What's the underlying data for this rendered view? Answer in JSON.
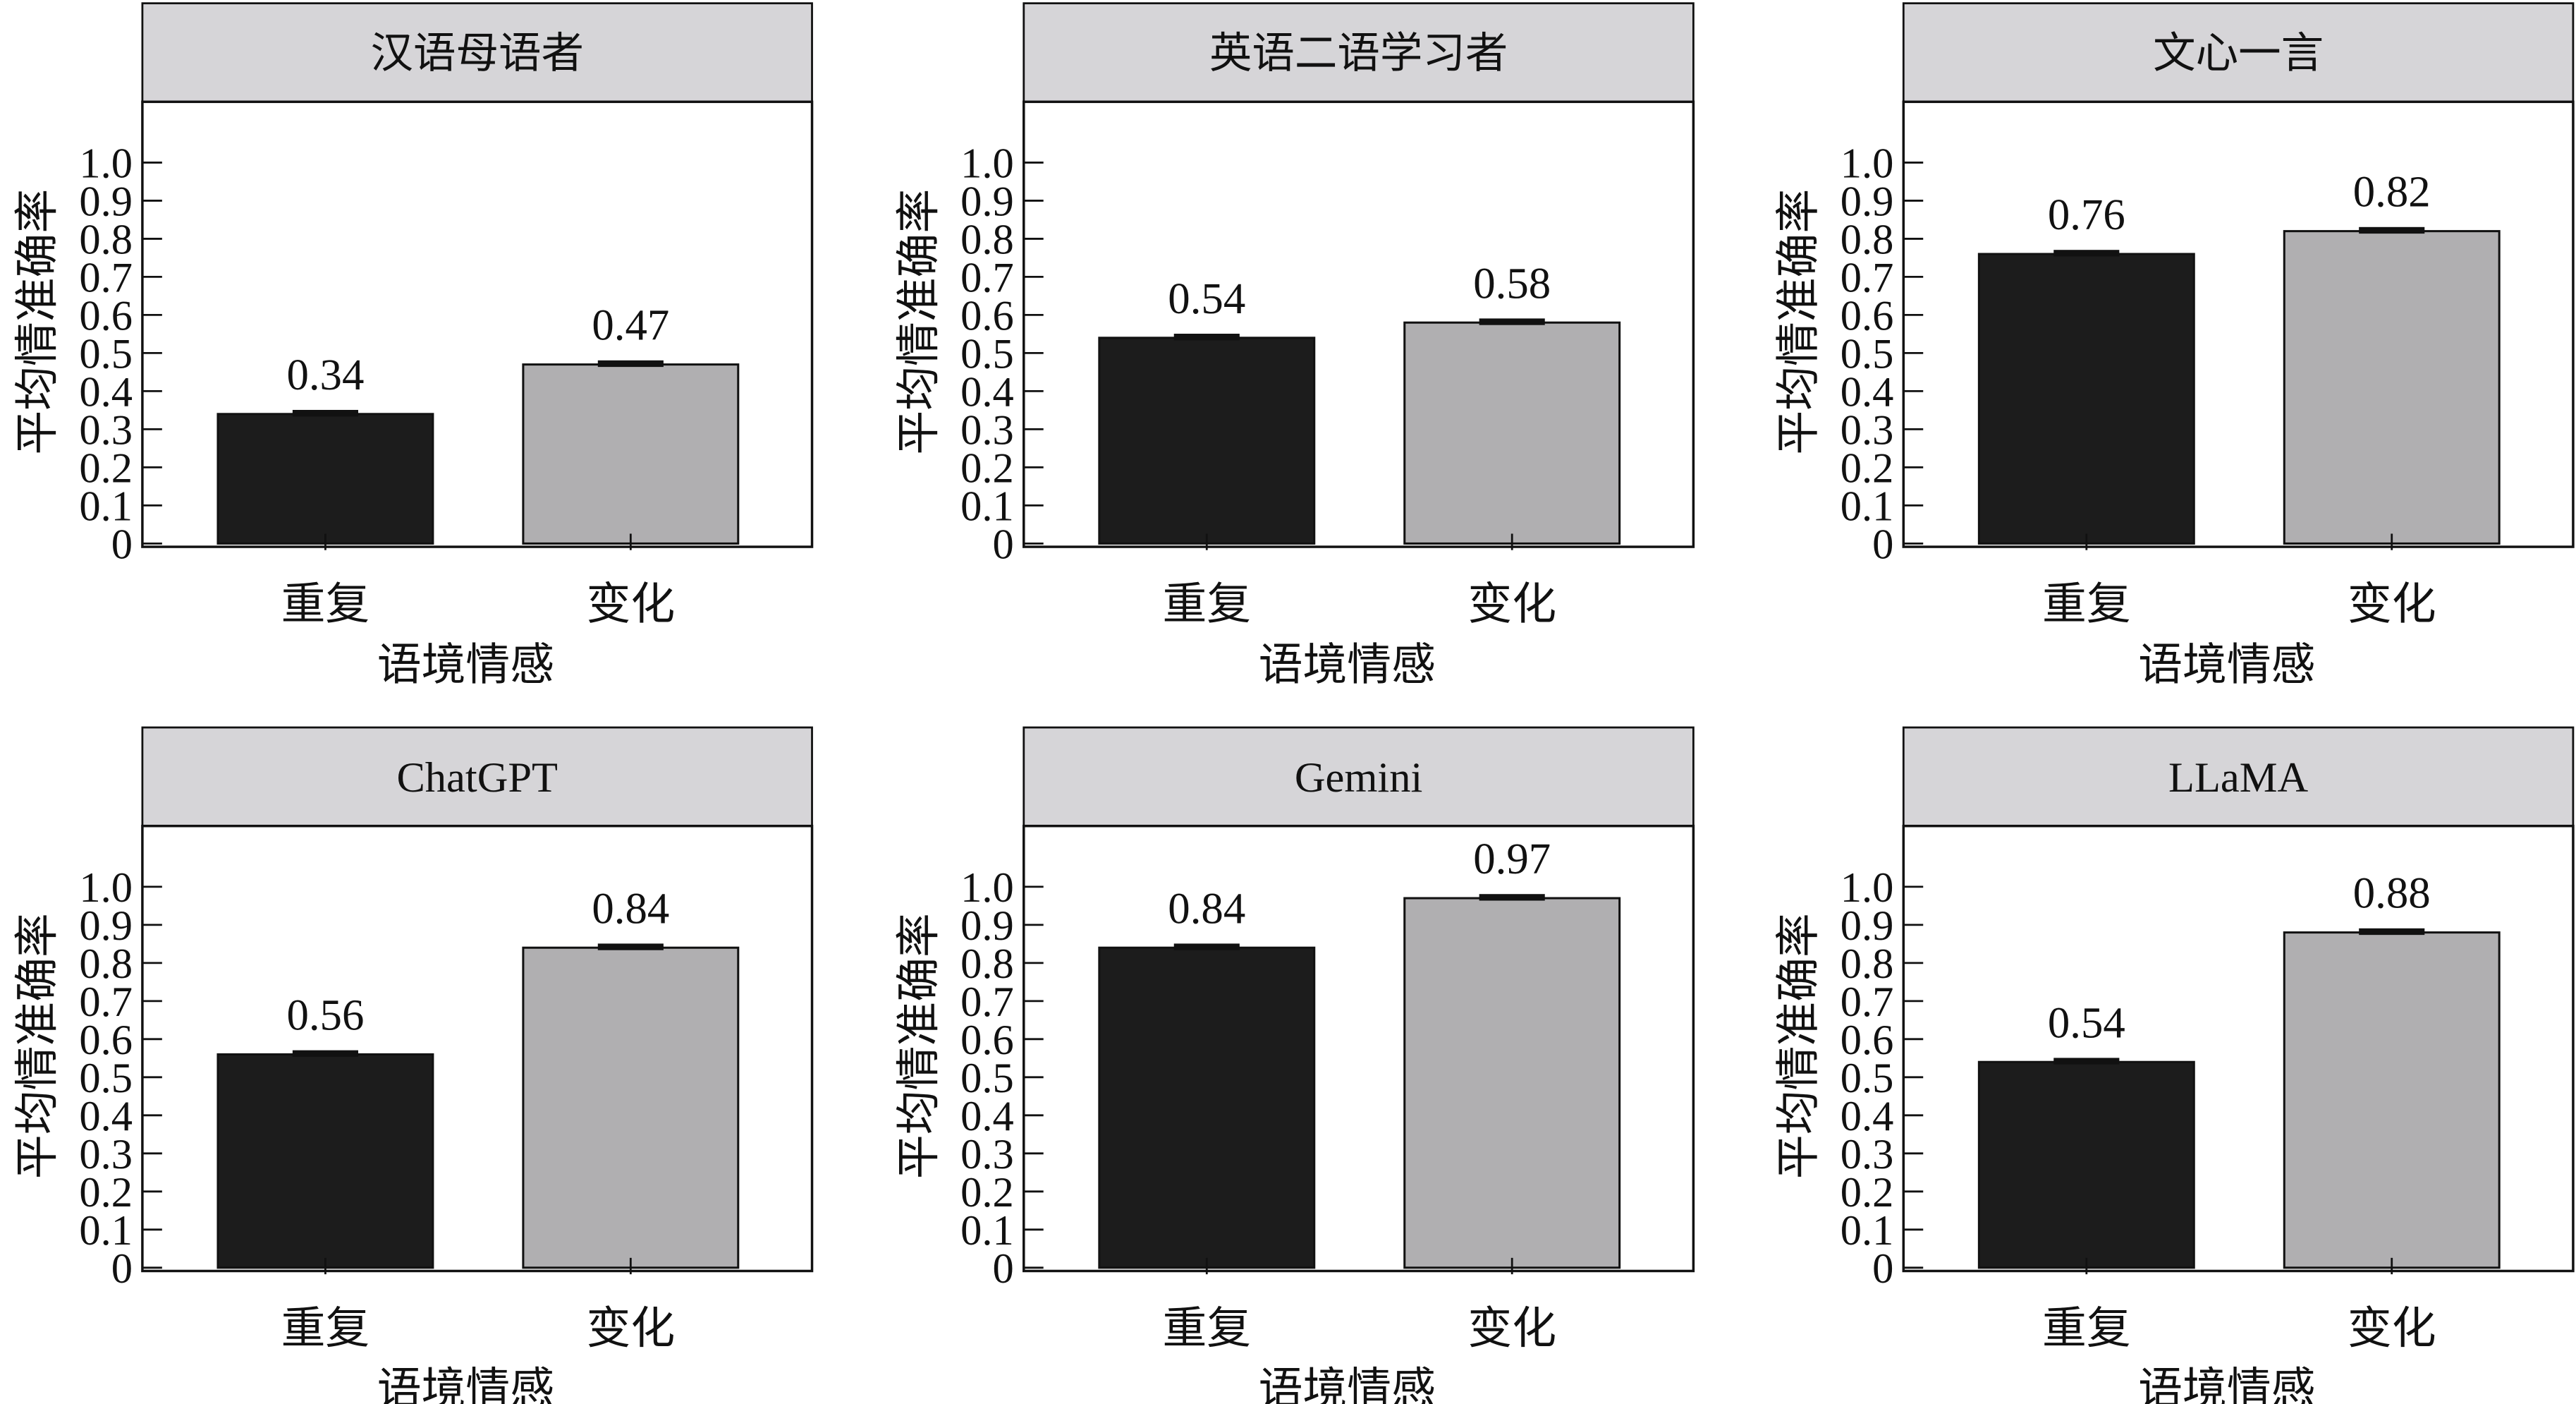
{
  "colors": {
    "repeat": "#1c1c1c",
    "change": "#b0afb1",
    "strip": "#d6d5d8"
  },
  "chart_data": [
    {
      "type": "bar",
      "title": "汉语母语者",
      "xlabel": "语境情感",
      "ylabel": "平均情准确率",
      "ylim": [
        0,
        1.0
      ],
      "yticks": [
        "0",
        "0.1",
        "0.2",
        "0.3",
        "0.4",
        "0.5",
        "0.6",
        "0.7",
        "0.8",
        "0.9",
        "1.0"
      ],
      "categories": [
        "重复",
        "变化"
      ],
      "values": [
        0.34,
        0.47
      ],
      "labels": [
        "0.34",
        "0.47"
      ]
    },
    {
      "type": "bar",
      "title": "英语二语学习者",
      "xlabel": "语境情感",
      "ylabel": "平均情准确率",
      "ylim": [
        0,
        1.0
      ],
      "yticks": [
        "0",
        "0.1",
        "0.2",
        "0.3",
        "0.4",
        "0.5",
        "0.6",
        "0.7",
        "0.8",
        "0.9",
        "1.0"
      ],
      "categories": [
        "重复",
        "变化"
      ],
      "values": [
        0.54,
        0.58
      ],
      "labels": [
        "0.54",
        "0.58"
      ]
    },
    {
      "type": "bar",
      "title": "文心一言",
      "xlabel": "语境情感",
      "ylabel": "平均情准确率",
      "ylim": [
        0,
        1.0
      ],
      "yticks": [
        "0",
        "0.1",
        "0.2",
        "0.3",
        "0.4",
        "0.5",
        "0.6",
        "0.7",
        "0.8",
        "0.9",
        "1.0"
      ],
      "categories": [
        "重复",
        "变化"
      ],
      "values": [
        0.76,
        0.82
      ],
      "labels": [
        "0.76",
        "0.82"
      ]
    },
    {
      "type": "bar",
      "title": "ChatGPT",
      "xlabel": "语境情感",
      "ylabel": "平均情准确率",
      "ylim": [
        0,
        1.0
      ],
      "yticks": [
        "0",
        "0.1",
        "0.2",
        "0.3",
        "0.4",
        "0.5",
        "0.6",
        "0.7",
        "0.8",
        "0.9",
        "1.0"
      ],
      "categories": [
        "重复",
        "变化"
      ],
      "values": [
        0.56,
        0.84
      ],
      "labels": [
        "0.56",
        "0.84"
      ]
    },
    {
      "type": "bar",
      "title": "Gemini",
      "xlabel": "语境情感",
      "ylabel": "平均情准确率",
      "ylim": [
        0,
        1.0
      ],
      "yticks": [
        "0",
        "0.1",
        "0.2",
        "0.3",
        "0.4",
        "0.5",
        "0.6",
        "0.7",
        "0.8",
        "0.9",
        "1.0"
      ],
      "categories": [
        "重复",
        "变化"
      ],
      "values": [
        0.84,
        0.97
      ],
      "labels": [
        "0.84",
        "0.97"
      ]
    },
    {
      "type": "bar",
      "title": "LLaMA",
      "xlabel": "语境情感",
      "ylabel": "平均情准确率",
      "ylim": [
        0,
        1.0
      ],
      "yticks": [
        "0",
        "0.1",
        "0.2",
        "0.3",
        "0.4",
        "0.5",
        "0.6",
        "0.7",
        "0.8",
        "0.9",
        "1.0"
      ],
      "categories": [
        "重复",
        "变化"
      ],
      "values": [
        0.54,
        0.88
      ],
      "labels": [
        "0.54",
        "0.88"
      ]
    }
  ]
}
